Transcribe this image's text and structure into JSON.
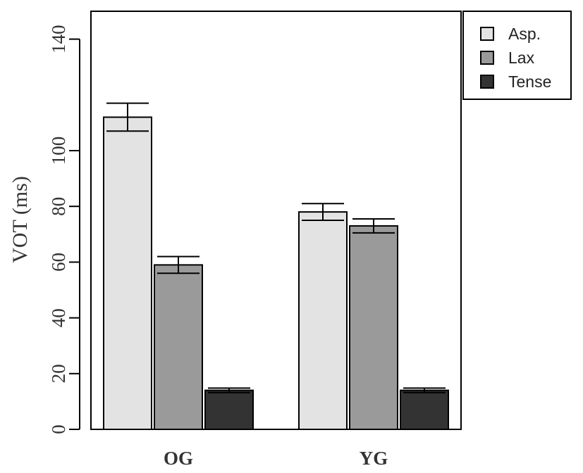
{
  "chart_data": {
    "type": "bar",
    "title": "",
    "xlabel": "",
    "ylabel": "VOT (ms)",
    "ylim": [
      0,
      150
    ],
    "yticks": [
      0,
      20,
      40,
      60,
      80,
      100,
      140
    ],
    "ytick_labels": [
      "0",
      "20",
      "40",
      "60",
      "80",
      "100",
      "140"
    ],
    "categories": [
      "OG",
      "YG"
    ],
    "series": [
      {
        "name": "Asp.",
        "values": [
          112,
          78
        ],
        "errors": [
          5,
          3
        ],
        "color": "#e3e3e3"
      },
      {
        "name": "Lax",
        "values": [
          59,
          73
        ],
        "errors": [
          3,
          2.5
        ],
        "color": "#9a9a9a"
      },
      {
        "name": "Tense",
        "values": [
          14,
          14
        ],
        "errors": [
          0.8,
          0.8
        ],
        "color": "#333333"
      }
    ],
    "legend": {
      "position": "top-right"
    },
    "grid": false
  }
}
